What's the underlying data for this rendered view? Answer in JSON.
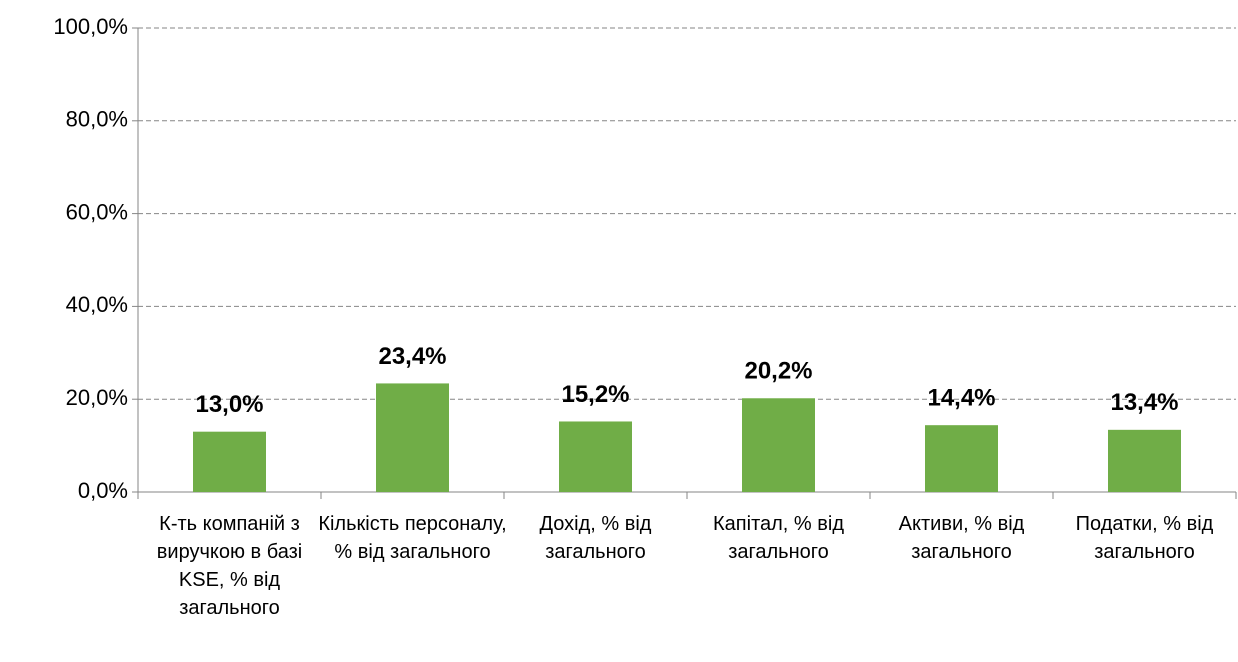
{
  "chart_data": {
    "type": "bar",
    "categories": [
      "К-ть компаній з виручкою в базі KSE, % від загального",
      "Кількість персоналу, % від загального",
      "Дохід, % від загального",
      "Капітал, % від загального",
      "Активи, % від загального",
      "Податки, % від загального"
    ],
    "values": [
      13.0,
      23.4,
      15.2,
      20.2,
      14.4,
      13.4
    ],
    "value_labels": [
      "13,0%",
      "23,4%",
      "15,2%",
      "20,2%",
      "14,4%",
      "13,4%"
    ],
    "color": "#70ad47",
    "ylim": [
      0,
      100
    ],
    "yticks": [
      {
        "value": 0,
        "label": "0,0%"
      },
      {
        "value": 20,
        "label": "20,0%"
      },
      {
        "value": 40,
        "label": "40,0%"
      },
      {
        "value": 60,
        "label": "60,0%"
      },
      {
        "value": 80,
        "label": "80,0%"
      },
      {
        "value": 100,
        "label": "100,0%"
      }
    ],
    "grid": true
  }
}
